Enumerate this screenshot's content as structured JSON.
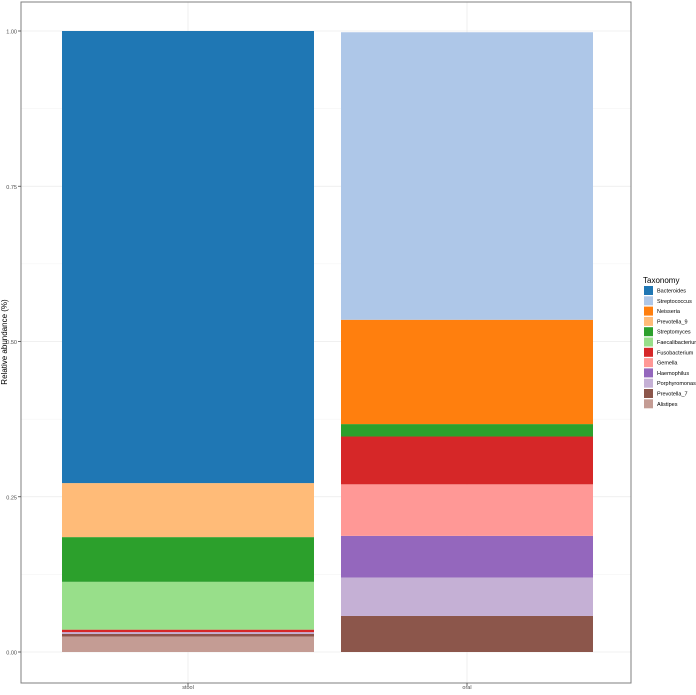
{
  "chart_data": {
    "type": "bar",
    "stacked": true,
    "title": "",
    "xlabel": "",
    "ylabel": "Relative abundance (%)",
    "ylim": [
      0,
      1
    ],
    "yticks": [
      "0.00",
      "0.25",
      "0.50",
      "0.75",
      "1.00"
    ],
    "ytick_values": [
      0,
      0.25,
      0.5,
      0.75,
      1.0
    ],
    "categories": [
      "stool",
      "oral"
    ],
    "grid": true,
    "legend": {
      "title": "Taxonomy",
      "placement": "right"
    },
    "series": [
      {
        "name": "Bacteroides",
        "color": "#1f77b4",
        "values": [
          0.728,
          0.0
        ]
      },
      {
        "name": "Streptococcus",
        "color": "#aec7e8",
        "values": [
          0.0,
          0.463
        ]
      },
      {
        "name": "Neisseria",
        "color": "#ff7f0e",
        "values": [
          0.0,
          0.168
        ]
      },
      {
        "name": "Prevotella_9",
        "color": "#ffbb78",
        "values": [
          0.087,
          0.0
        ]
      },
      {
        "name": "Streptomyces",
        "color": "#2ca02c",
        "values": [
          0.072,
          0.02
        ]
      },
      {
        "name": "Faecalibacterium",
        "color": "#98df8a",
        "values": [
          0.077,
          0.0
        ]
      },
      {
        "name": "Fusobacterium",
        "color": "#d62728",
        "values": [
          0.004,
          0.077
        ]
      },
      {
        "name": "Gemella",
        "color": "#ff9896",
        "values": [
          0.0,
          0.083
        ]
      },
      {
        "name": "Haemophilus",
        "color": "#9467bd",
        "values": [
          0.0,
          0.067
        ]
      },
      {
        "name": "Porphyromonas",
        "color": "#c5b0d5",
        "values": [
          0.003,
          0.062
        ]
      },
      {
        "name": "Prevotella_7",
        "color": "#8c564b",
        "values": [
          0.004,
          0.058
        ]
      },
      {
        "name": "Alistipes",
        "color": "#c49c94",
        "values": [
          0.025,
          0.0
        ]
      }
    ],
    "stack_order": [
      "Alistipes",
      "Prevotella_7",
      "Porphyromonas",
      "Haemophilus",
      "Gemella",
      "Fusobacterium",
      "Faecalibacterium",
      "Streptomyces",
      "Prevotella_9",
      "Neisseria",
      "Streptococcus",
      "Bacteroides"
    ]
  }
}
